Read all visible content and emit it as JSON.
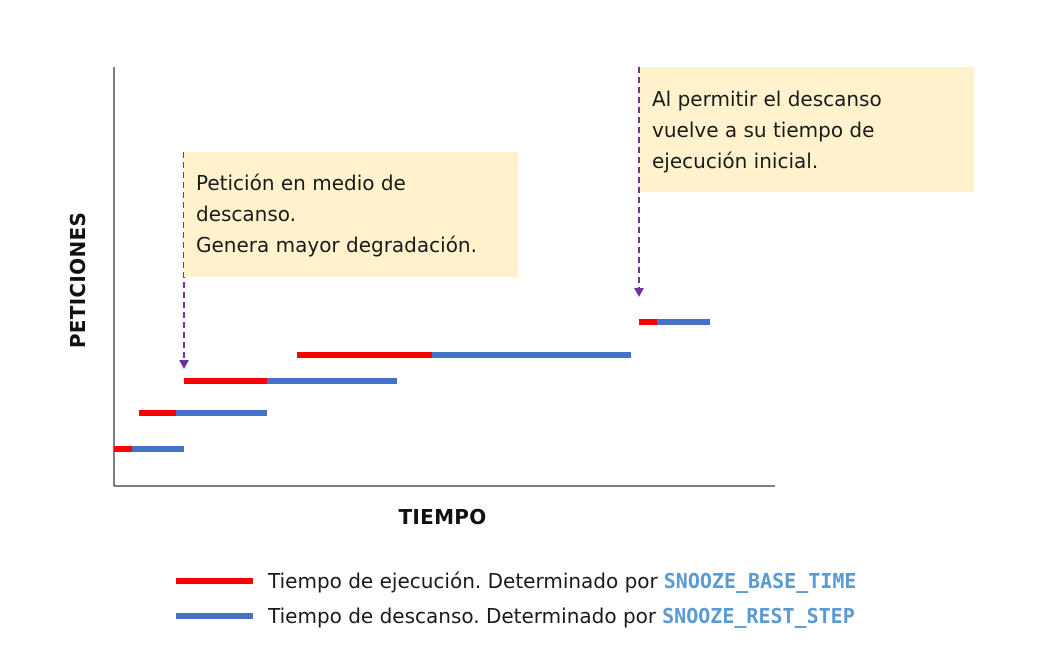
{
  "axes": {
    "x_label": "TIEMPO",
    "y_label": "PETICIONES"
  },
  "callouts": [
    {
      "lines": [
        "Petición en medio de",
        "descanso.",
        "Genera mayor degradación."
      ]
    },
    {
      "lines": [
        "Al permitir el descanso",
        "vuelve a su tiempo de",
        "ejecución inicial."
      ]
    }
  ],
  "legend": [
    {
      "text": "Tiempo de ejecución. Determinado por",
      "code": "SNOOZE_BASE_TIME",
      "color": "#ff0000"
    },
    {
      "text": "Tiempo de descanso. Determinado por",
      "code": "SNOOZE_REST_STEP",
      "color": "#4472c4"
    }
  ],
  "colors": {
    "execution": "#ff0000",
    "rest": "#4472c4",
    "arrow": "#7030a0",
    "callout_bg": "#fff2cc",
    "code_text": "#5b9bd5"
  }
}
